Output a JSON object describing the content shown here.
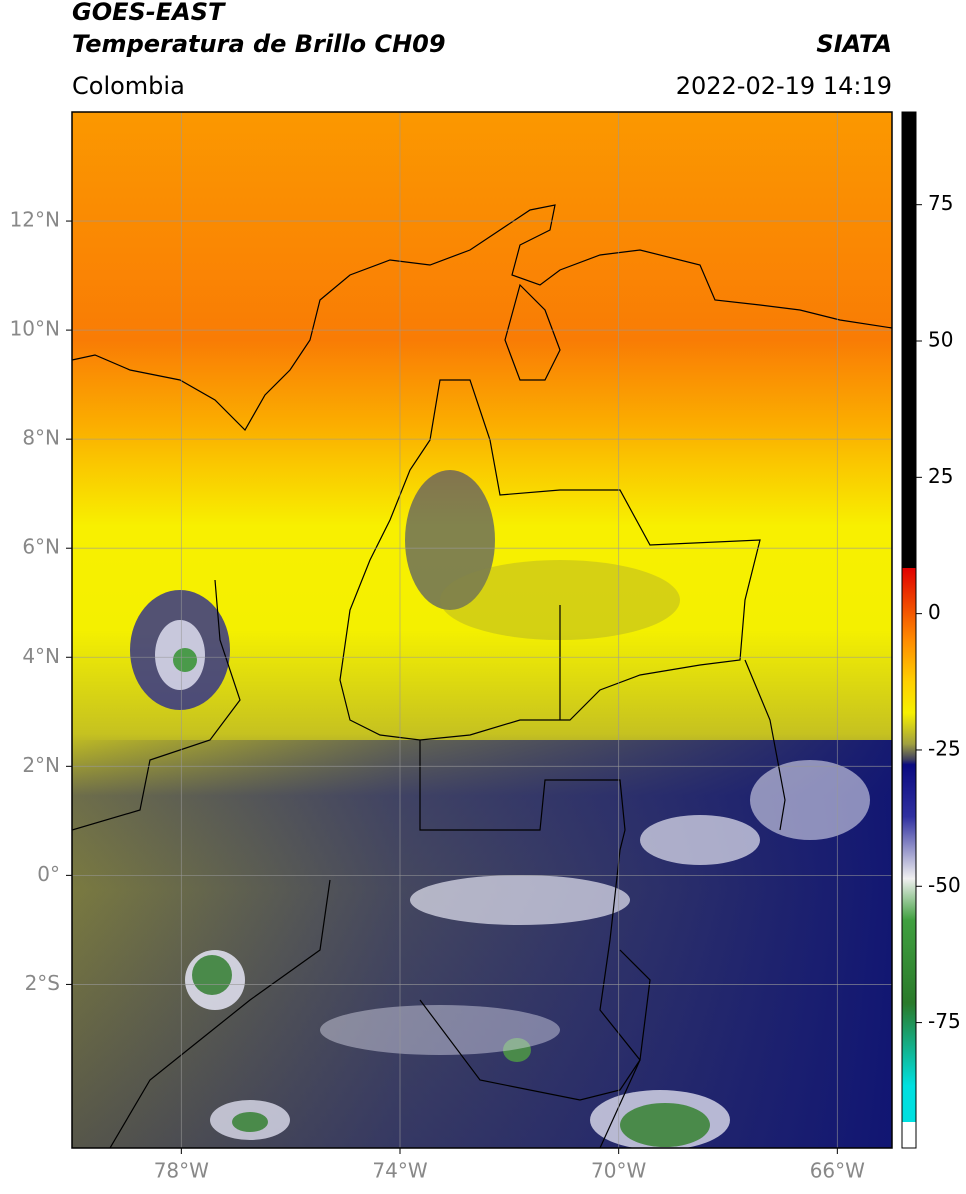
{
  "header": {
    "satellite": "GOES-EAST",
    "product": "Temperatura de Brillo CH09",
    "source": "SIATA",
    "region": "Colombia",
    "datetime": "2022-02-19 14:19"
  },
  "map": {
    "xlim": [
      -80,
      -65
    ],
    "ylim": [
      -5,
      14
    ],
    "xticks": [
      {
        "value": -78,
        "label": "78°W"
      },
      {
        "value": -74,
        "label": "74°W"
      },
      {
        "value": -70,
        "label": "70°W"
      },
      {
        "value": -66,
        "label": "66°W"
      }
    ],
    "yticks": [
      {
        "value": 12,
        "label": "12°N"
      },
      {
        "value": 10,
        "label": "10°N"
      },
      {
        "value": 8,
        "label": "8°N"
      },
      {
        "value": 6,
        "label": "6°N"
      },
      {
        "value": 4,
        "label": "4°N"
      },
      {
        "value": 2,
        "label": "2°N"
      },
      {
        "value": 0,
        "label": "0°"
      },
      {
        "value": -2,
        "label": "2°S"
      }
    ],
    "grid": true
  },
  "colorbar": {
    "lim": [
      -98,
      92
    ],
    "ticks": [
      75,
      50,
      25,
      0,
      -25,
      -50,
      -75
    ]
  }
}
